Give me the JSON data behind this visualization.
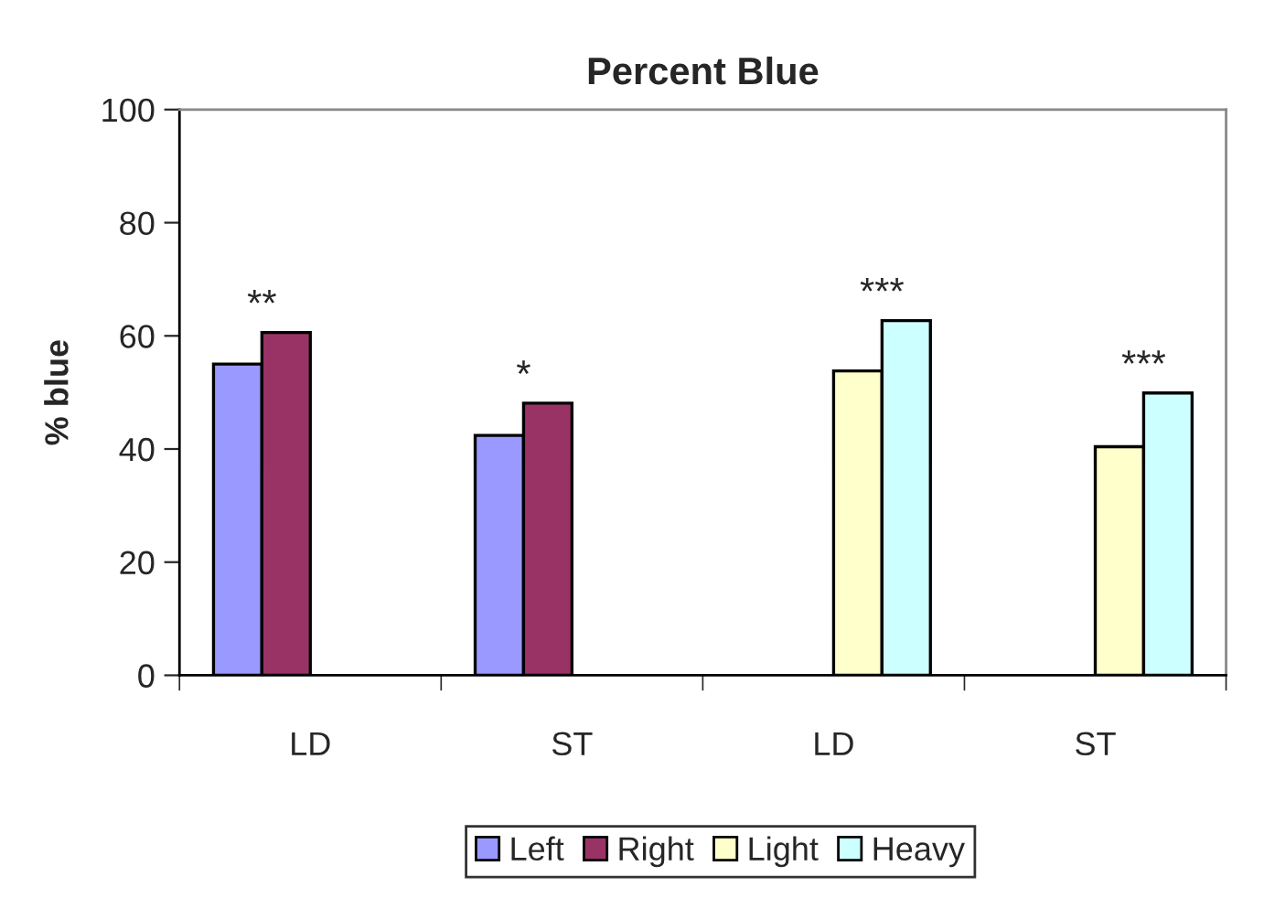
{
  "chart_data": {
    "type": "bar",
    "title": "Percent Blue",
    "ylabel": "% blue",
    "categories": [
      "LD",
      "ST",
      "LD",
      "ST"
    ],
    "series": [
      {
        "name": "Left",
        "color": "#9999ff",
        "values": [
          55,
          42.4,
          null,
          null
        ]
      },
      {
        "name": "Right",
        "color": "#993366",
        "values": [
          60.6,
          48.1,
          null,
          null
        ]
      },
      {
        "name": "Light",
        "color": "#ffffcc",
        "values": [
          null,
          null,
          53.8,
          40.4
        ]
      },
      {
        "name": "Heavy",
        "color": "#ccffff",
        "values": [
          null,
          null,
          62.7,
          49.9
        ]
      }
    ],
    "annotations": [
      "**",
      "*",
      "***",
      "***"
    ],
    "ylim": [
      0,
      100
    ],
    "yticks": [
      0,
      20,
      40,
      60,
      80,
      100
    ],
    "grid": false,
    "legend": "bottom"
  }
}
